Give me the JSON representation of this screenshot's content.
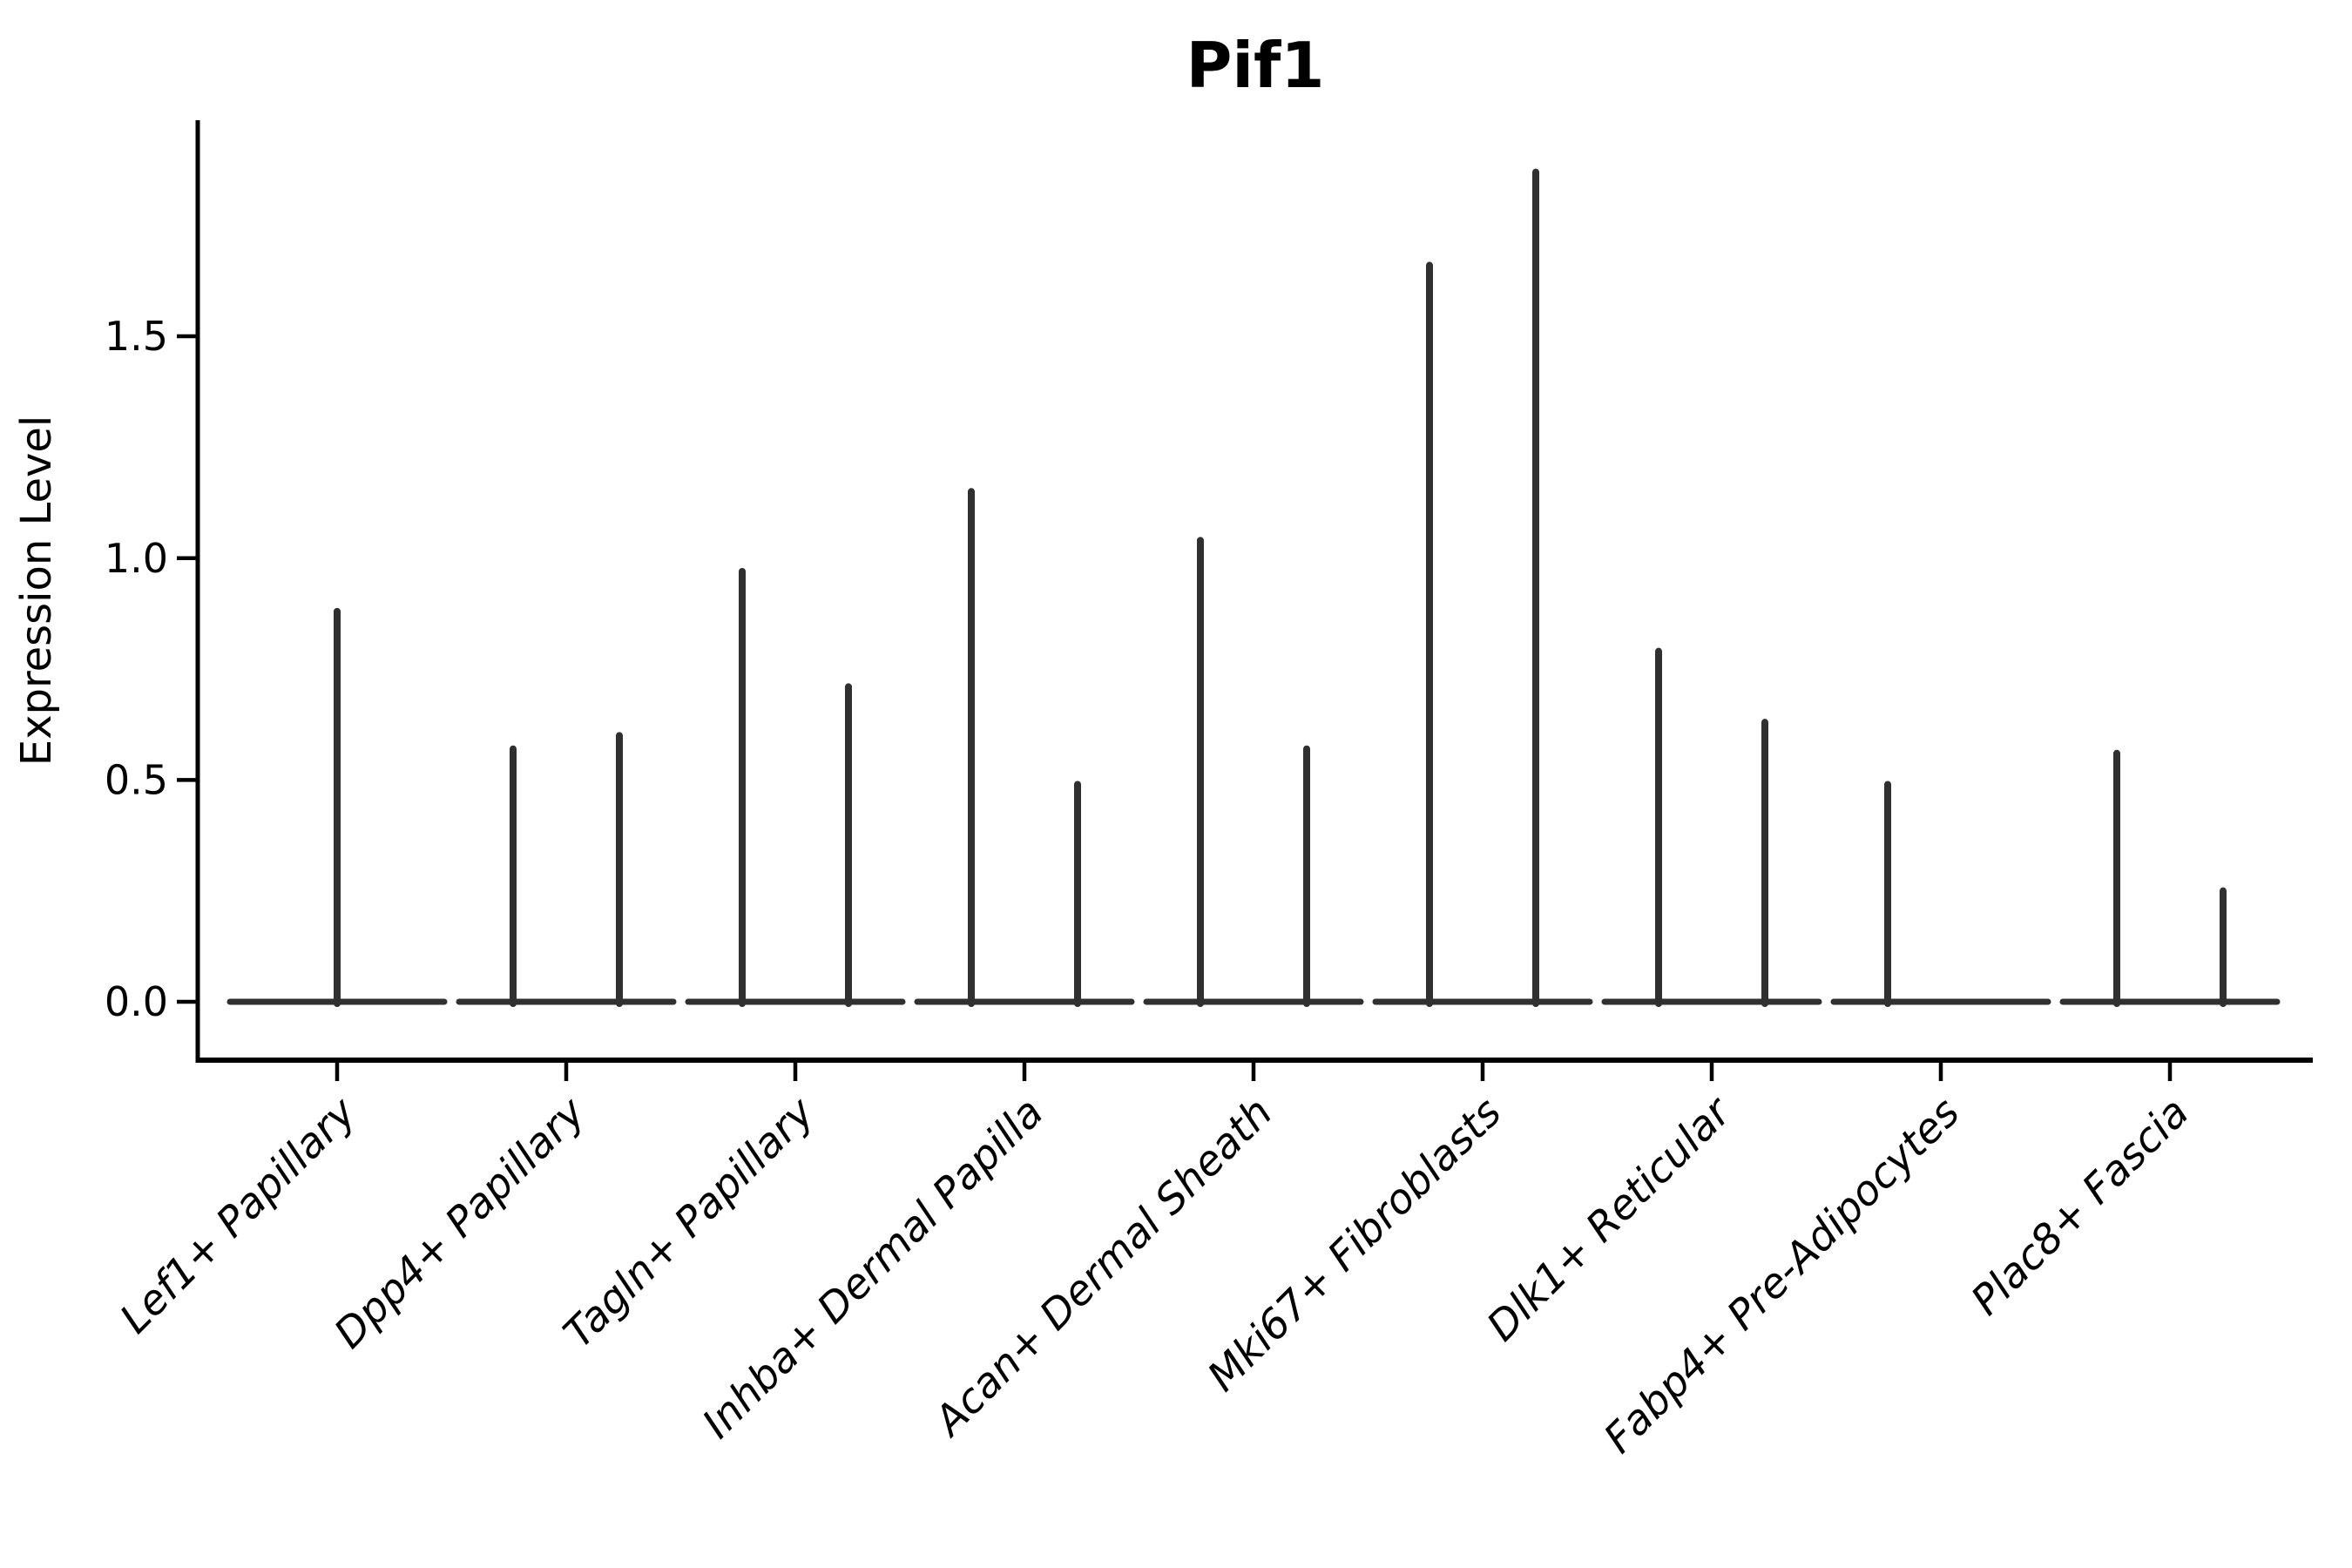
{
  "chart_data": {
    "type": "violin",
    "title": "Pif1",
    "ylabel": "Expression Level",
    "xlabel": "",
    "legend": "none",
    "grid": false,
    "background": "#ffffff",
    "colors": {
      "violin": "#303030",
      "axis": "#000000",
      "text": "#000000"
    },
    "ylim": [
      -0.1,
      2.0
    ],
    "ytick_values": [
      0.0,
      0.5,
      1.0,
      1.5
    ],
    "ytick_labels": [
      "0.0",
      "0.5",
      "1.0",
      "1.5"
    ],
    "categories": [
      "Lef1+ Papillary",
      "Dpp4+ Papillary",
      "Tagln+ Papillary",
      "Inhba+ Dermal Papilla",
      "Acan+ Dermal Sheath",
      "Mki67+ Fibroblasts",
      "Dlk1+ Reticular",
      "Fabp4+ Pre-Adipocytes",
      "Plac8+ Fascia"
    ],
    "series": [
      {
        "category": "Lef1+ Papillary",
        "violins": [
          {
            "position": "center",
            "peak_max": 0.88
          }
        ]
      },
      {
        "category": "Dpp4+ Papillary",
        "violins": [
          {
            "position": "left",
            "peak_max": 0.57
          },
          {
            "position": "right",
            "peak_max": 0.6
          }
        ]
      },
      {
        "category": "Tagln+ Papillary",
        "violins": [
          {
            "position": "left",
            "peak_max": 0.97
          },
          {
            "position": "right",
            "peak_max": 0.71
          }
        ]
      },
      {
        "category": "Inhba+ Dermal Papilla",
        "violins": [
          {
            "position": "left",
            "peak_max": 1.15
          },
          {
            "position": "right",
            "peak_max": 0.49
          }
        ]
      },
      {
        "category": "Acan+ Dermal Sheath",
        "violins": [
          {
            "position": "left",
            "peak_max": 1.04
          },
          {
            "position": "right",
            "peak_max": 0.57
          }
        ]
      },
      {
        "category": "Mki67+ Fibroblasts",
        "violins": [
          {
            "position": "left",
            "peak_max": 1.66
          },
          {
            "position": "right",
            "peak_max": 1.87
          }
        ]
      },
      {
        "category": "Dlk1+ Reticular",
        "violins": [
          {
            "position": "left",
            "peak_max": 0.79
          },
          {
            "position": "right",
            "peak_max": 0.63
          }
        ]
      },
      {
        "category": "Fabp4+ Pre-Adipocytes",
        "violins": [
          {
            "position": "left",
            "peak_max": 0.49
          }
        ]
      },
      {
        "category": "Plac8+ Fascia",
        "violins": [
          {
            "position": "left",
            "peak_max": 0.56
          },
          {
            "position": "right",
            "peak_max": 0.25
          }
        ]
      }
    ],
    "notes": "Each category shows razor-thin violin(s): a wide flat base at expression 0 plus a narrow spike up to peak_max."
  }
}
